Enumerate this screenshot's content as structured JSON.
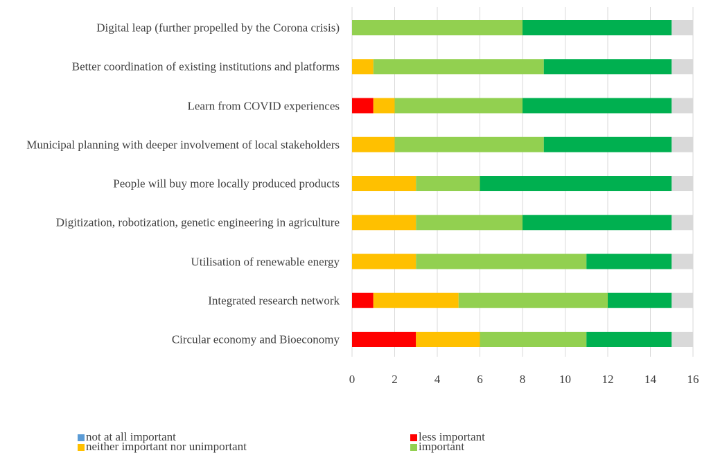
{
  "chart_data": {
    "type": "stacked-bar-horizontal",
    "categories": [
      "Digital leap (further propelled by the Corona crisis)",
      "Better coordination of existing institutions and platforms",
      "Learn from COVID experiences",
      "Municipal planning with deeper involvement of local stakeholders",
      "People will buy more locally produced products",
      "Digitization, robotization, genetic engineering in agriculture",
      "Utilisation of renewable energy",
      "Integrated research network",
      "Circular economy and Bioeconomy"
    ],
    "series": [
      {
        "name": "not at all important",
        "color": "#5b9bd5",
        "values": [
          0,
          0,
          0,
          0,
          0,
          0,
          0,
          0,
          0
        ]
      },
      {
        "name": "less important",
        "color": "#ff0000",
        "values": [
          0,
          0,
          1,
          0,
          0,
          0,
          0,
          1,
          3
        ]
      },
      {
        "name": "neither important nor unimportant",
        "color": "#ffc000",
        "values": [
          0,
          1,
          1,
          2,
          3,
          3,
          3,
          4,
          3
        ]
      },
      {
        "name": "important",
        "color": "#92d050",
        "values": [
          8,
          8,
          6,
          7,
          3,
          5,
          8,
          7,
          5
        ]
      },
      {
        "color": "#00b050",
        "values": [
          7,
          6,
          7,
          6,
          9,
          7,
          4,
          3,
          4
        ]
      },
      {
        "color": "#d9d9d9",
        "values": [
          1,
          1,
          1,
          1,
          1,
          1,
          1,
          1,
          1
        ]
      }
    ],
    "xlim": [
      0,
      16
    ],
    "xticks": [
      0,
      2,
      4,
      6,
      8,
      10,
      12,
      14,
      16
    ],
    "grid": true
  }
}
